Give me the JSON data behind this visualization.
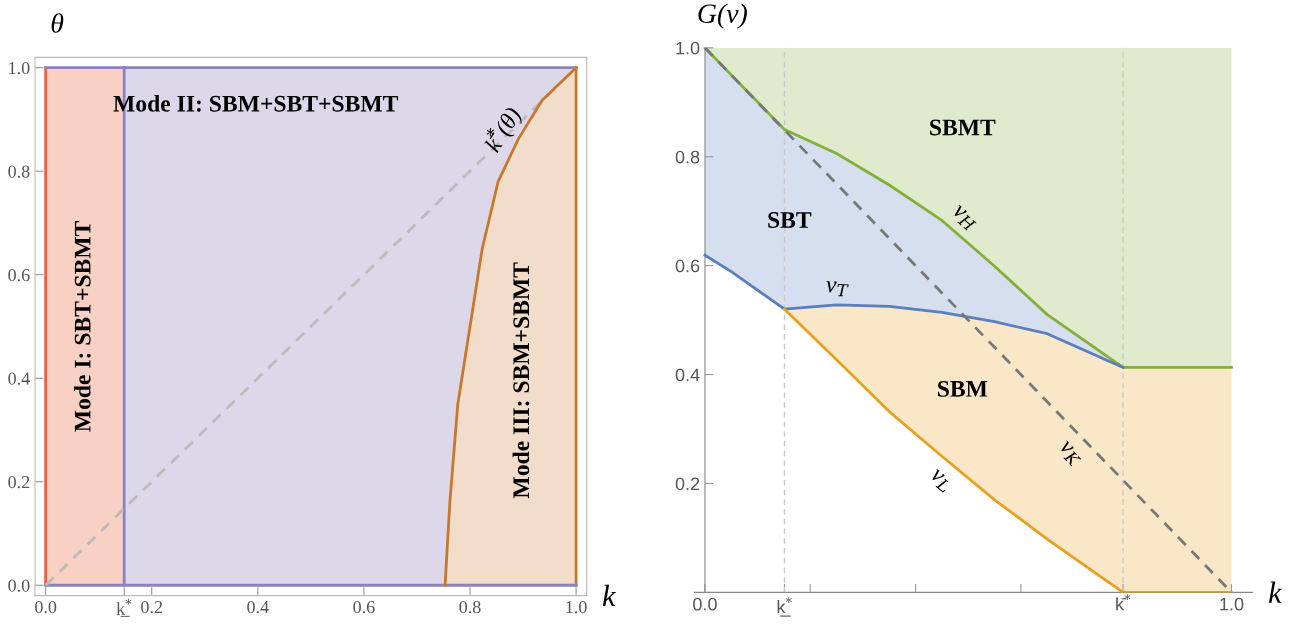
{
  "chart_data": [
    {
      "type": "area",
      "xlabel": "k",
      "ylabel": "θ",
      "xlim": [
        -0.02,
        1.02
      ],
      "ylim": [
        -0.02,
        1.02
      ],
      "xticks": [
        {
          "value": 0,
          "label": "0.0"
        },
        {
          "value": 0.148,
          "label": "k̲$^{*}$"
        },
        {
          "value": 0.2,
          "label": "0.2"
        },
        {
          "value": 0.4,
          "label": "0.4"
        },
        {
          "value": 0.6,
          "label": "0.6"
        },
        {
          "value": 0.8,
          "label": "0.8"
        },
        {
          "value": 1,
          "label": "1.0"
        }
      ],
      "yticks": [
        {
          "value": 0,
          "label": "0.0"
        },
        {
          "value": 0.2,
          "label": "0.2"
        },
        {
          "value": 0.4,
          "label": "0.4"
        },
        {
          "value": 0.6,
          "label": "0.6"
        },
        {
          "value": 0.8,
          "label": "0.8"
        },
        {
          "value": 1,
          "label": "1.0"
        }
      ],
      "annotations": [
        "Mode I: SBT+SBMT",
        "Mode II: SBM+SBT+SBMT",
        "Mode III: SBM+SBMT"
      ],
      "series": [
        {
          "x": [
            0.0,
            0.148
          ],
          "values": [
            1.0,
            1.0
          ],
          "color": "#f8d0c4"
        },
        {
          "x": [
            0.148,
            1.0
          ],
          "values": [
            1.0,
            1.0
          ],
          "color": "#dcd8ea"
        },
        {
          "type": "line",
          "x": [
            0.0,
            1.0
          ],
          "values": [
            0.0,
            1.0
          ],
          "color": "#bbbbbb",
          "line_style": "dashed"
        },
        {
          "type": "line",
          "name": "k̄$^{*}$(θ)",
          "x": [
            0.753,
            0.762,
            0.777,
            0.8,
            0.823,
            0.853,
            0.891,
            0.936,
            1.0
          ],
          "values": [
            0.0,
            0.16,
            0.35,
            0.5,
            0.65,
            0.78,
            0.862,
            0.937,
            1.0
          ],
          "lower": [
            0.0,
            0.0,
            0.0,
            0.0,
            0.0,
            0.0,
            0.0,
            0.0,
            0.0
          ],
          "upper": [
            0.0,
            0.16,
            0.35,
            0.5,
            0.65,
            0.78,
            0.862,
            0.937,
            1.0
          ],
          "color": "#c8782a",
          "line_style": "solid"
        }
      ],
      "ref_lines": [
        {
          "axis": "x",
          "value": 0,
          "label": null,
          "color": "#e8603c",
          "line_style": "solid"
        },
        {
          "axis": "x",
          "value": 0.148,
          "label": null,
          "color": "#8b82c0",
          "line_style": "solid"
        },
        {
          "axis": "x",
          "value": 1,
          "label": null,
          "color": "#c8782a",
          "line_style": "solid"
        },
        {
          "axis": "y",
          "value": 0,
          "label": null,
          "color": "#8b82c0",
          "line_style": "solid"
        },
        {
          "axis": "y",
          "value": 1,
          "label": null,
          "color": "#8b82c0",
          "line_style": "solid"
        }
      ]
    },
    {
      "type": "line",
      "xlabel": "k",
      "ylabel": "G(v)",
      "xlim": [
        -0.02,
        1.04
      ],
      "ylim": [
        0.0,
        1.0
      ],
      "x": [
        0.0,
        0.05,
        0.151,
        0.25,
        0.35,
        0.45,
        0.55,
        0.65,
        0.794,
        1.0
      ],
      "xticks": [
        {
          "value": 0,
          "label": "0.0"
        },
        {
          "value": 0.151,
          "label": "k̲$^{*}$"
        },
        {
          "value": 0.2,
          "label": null
        },
        {
          "value": 0.4,
          "label": null
        },
        {
          "value": 0.6,
          "label": null
        },
        {
          "value": 0.794,
          "label": "k̄$^{*}$"
        },
        {
          "value": 1,
          "label": "1.0"
        }
      ],
      "yticks": [
        0.2,
        0.4,
        0.6,
        0.8,
        {
          "value": 1,
          "label": "1.0"
        }
      ],
      "ref_lines": [
        {
          "axis": "x",
          "value": 0.151,
          "label": null,
          "color": "#c8c8c8",
          "line_style": "dashed"
        },
        {
          "axis": "x",
          "value": 0.794,
          "label": null,
          "color": "#c8c8c8",
          "line_style": "dashed"
        }
      ],
      "annotations": [
        "SBMT",
        "SBT",
        "SBM"
      ],
      "series": [
        {
          "name": "v$_{H}$",
          "values": [
            1.0,
            0.95,
            0.85,
            0.806,
            0.748,
            0.683,
            0.599,
            0.51,
            0.413,
            0.413
          ],
          "lower": [
            1.0,
            0.95,
            0.85,
            0.806,
            0.748,
            0.683,
            0.599,
            0.51,
            0.413,
            0.413
          ],
          "upper": [
            1.0,
            1.0,
            1.0,
            1.0,
            1.0,
            1.0,
            1.0,
            1.0,
            1.0,
            1.0
          ],
          "color": "#84b03a",
          "line_style": "solid"
        },
        {
          "name": "v$_{T}$",
          "values": [
            0.619,
            0.589,
            0.52,
            0.528,
            0.525,
            0.514,
            0.497,
            0.475,
            0.413,
            null
          ],
          "lower": [
            0.619,
            0.589,
            0.52,
            0.528,
            0.525,
            0.514,
            0.497,
            0.475,
            0.413,
            null
          ],
          "upper": [
            1.0,
            0.95,
            0.85,
            0.806,
            0.748,
            0.683,
            0.599,
            0.51,
            0.413,
            null
          ],
          "color": "#5a7fbf",
          "line_style": "solid"
        },
        {
          "name": "v$_{L}$",
          "values": [
            null,
            null,
            0.52,
            0.427,
            0.332,
            0.25,
            0.17,
            0.098,
            0.0,
            0.0
          ],
          "lower": [
            null,
            null,
            0.52,
            0.427,
            0.332,
            0.25,
            0.17,
            0.098,
            0.0,
            0.0
          ],
          "upper": [
            null,
            null,
            0.52,
            0.528,
            0.525,
            0.514,
            0.497,
            0.475,
            0.413,
            0.413
          ],
          "color": "#e8a020",
          "line_style": "solid"
        },
        {
          "name": "v$_{K}$",
          "x": [
            0.0,
            1.0
          ],
          "values": [
            1.0,
            0.0
          ],
          "color": "#777777",
          "line_style": "dashed"
        }
      ]
    }
  ]
}
